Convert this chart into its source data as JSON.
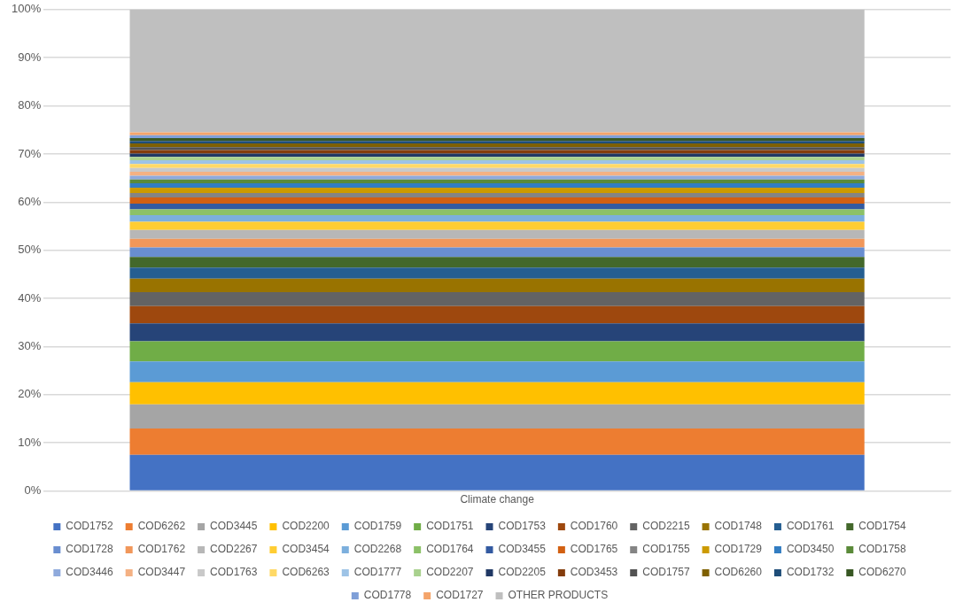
{
  "chart_data": {
    "type": "bar",
    "stacked": true,
    "categories": [
      "Climate change"
    ],
    "ylim": [
      0,
      100
    ],
    "yticks": [
      {
        "value": 0,
        "label": "0%"
      },
      {
        "value": 10,
        "label": "10%"
      },
      {
        "value": 20,
        "label": "20%"
      },
      {
        "value": 30,
        "label": "30%"
      },
      {
        "value": 40,
        "label": "40%"
      },
      {
        "value": 50,
        "label": "50%"
      },
      {
        "value": 60,
        "label": "60%"
      },
      {
        "value": 70,
        "label": "70%"
      },
      {
        "value": 80,
        "label": "80%"
      },
      {
        "value": 90,
        "label": "90%"
      },
      {
        "value": 100,
        "label": "100%"
      }
    ],
    "grid": "y",
    "legend": "bottom",
    "series": [
      {
        "name": "COD1752",
        "color": "#4472c4",
        "values": [
          7.5
        ]
      },
      {
        "name": "COD6262",
        "color": "#ed7d31",
        "values": [
          5.5
        ]
      },
      {
        "name": "COD3445",
        "color": "#a5a5a5",
        "values": [
          5.0
        ]
      },
      {
        "name": "COD2200",
        "color": "#ffc000",
        "values": [
          4.6
        ]
      },
      {
        "name": "COD1759",
        "color": "#5b9bd5",
        "values": [
          4.3
        ]
      },
      {
        "name": "COD1751",
        "color": "#70ad47",
        "values": [
          4.2
        ]
      },
      {
        "name": "COD1753",
        "color": "#264478",
        "values": [
          3.7
        ]
      },
      {
        "name": "COD1760",
        "color": "#9e480e",
        "values": [
          3.6
        ]
      },
      {
        "name": "COD2215",
        "color": "#636363",
        "values": [
          2.9
        ]
      },
      {
        "name": "COD1748",
        "color": "#997300",
        "values": [
          2.8
        ]
      },
      {
        "name": "COD1761",
        "color": "#255e91",
        "values": [
          2.3
        ]
      },
      {
        "name": "COD1754",
        "color": "#43682b",
        "values": [
          2.2
        ]
      },
      {
        "name": "COD1728",
        "color": "#698ed0",
        "values": [
          2.0
        ]
      },
      {
        "name": "COD1762",
        "color": "#f1975a",
        "values": [
          1.8
        ]
      },
      {
        "name": "COD2267",
        "color": "#b7b7b7",
        "values": [
          1.8
        ]
      },
      {
        "name": "COD3454",
        "color": "#ffcd33",
        "values": [
          1.7
        ]
      },
      {
        "name": "COD2268",
        "color": "#7cafdd",
        "values": [
          1.4
        ]
      },
      {
        "name": "COD1764",
        "color": "#8cc168",
        "values": [
          1.2
        ]
      },
      {
        "name": "COD3455",
        "color": "#335aa1",
        "values": [
          1.2
        ]
      },
      {
        "name": "COD1765",
        "color": "#d26012",
        "values": [
          1.3
        ]
      },
      {
        "name": "COD1755",
        "color": "#848484",
        "values": [
          0.9
        ]
      },
      {
        "name": "COD1729",
        "color": "#cc9a00",
        "values": [
          1.1
        ]
      },
      {
        "name": "COD3450",
        "color": "#327dc2",
        "values": [
          0.9
        ]
      },
      {
        "name": "COD1758",
        "color": "#5a8a39",
        "values": [
          0.8
        ]
      },
      {
        "name": "COD3446",
        "color": "#8faadc",
        "values": [
          0.8
        ]
      },
      {
        "name": "COD3447",
        "color": "#f4b183",
        "values": [
          0.8
        ]
      },
      {
        "name": "COD1763",
        "color": "#c9c9c9",
        "values": [
          0.8
        ]
      },
      {
        "name": "COD6263",
        "color": "#ffd966",
        "values": [
          0.8
        ]
      },
      {
        "name": "COD1777",
        "color": "#9dc3e6",
        "values": [
          0.8
        ]
      },
      {
        "name": "COD2207",
        "color": "#a9d18e",
        "values": [
          0.7
        ]
      },
      {
        "name": "COD2205",
        "color": "#203864",
        "values": [
          0.7
        ]
      },
      {
        "name": "COD3453",
        "color": "#843c0c",
        "values": [
          0.7
        ]
      },
      {
        "name": "COD1757",
        "color": "#525252",
        "values": [
          0.6
        ]
      },
      {
        "name": "COD6260",
        "color": "#7f6000",
        "values": [
          0.8
        ]
      },
      {
        "name": "COD1732",
        "color": "#1f4e79",
        "values": [
          0.5
        ]
      },
      {
        "name": "COD6270",
        "color": "#385723",
        "values": [
          0.6
        ]
      },
      {
        "name": "COD1778",
        "color": "#7f9fd8",
        "values": [
          0.6
        ]
      },
      {
        "name": "COD1727",
        "color": "#f4a46a",
        "values": [
          0.6
        ]
      },
      {
        "name": "OTHER PRODUCTS",
        "color": "#bfbfbf",
        "values": [
          25.5
        ]
      }
    ]
  }
}
